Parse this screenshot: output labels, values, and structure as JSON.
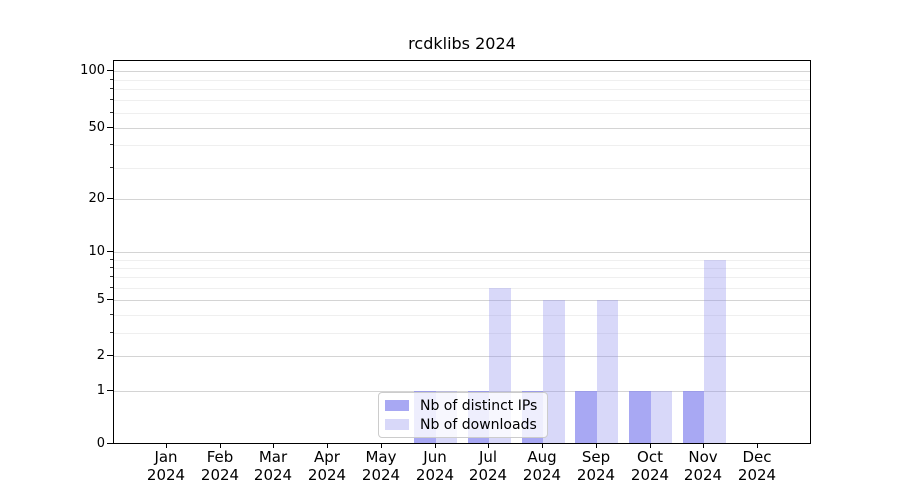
{
  "chart_data": {
    "type": "bar",
    "title": "rcdklibs 2024",
    "categories": [
      "Jan",
      "Feb",
      "Mar",
      "Apr",
      "May",
      "Jun",
      "Jul",
      "Aug",
      "Sep",
      "Oct",
      "Nov",
      "Dec"
    ],
    "xtick_year": "2024",
    "series": [
      {
        "name": "Nb of distinct IPs",
        "color": "rgba(136,136,238,0.73)",
        "values": [
          0,
          0,
          0,
          0,
          0,
          1,
          1,
          1,
          1,
          1,
          1,
          0
        ]
      },
      {
        "name": "Nb of downloads",
        "color": "rgba(136,136,238,0.33)",
        "values": [
          0,
          0,
          0,
          0,
          0,
          1,
          6,
          5,
          5,
          1,
          9,
          0
        ]
      }
    ],
    "yscale": "log1p",
    "ylim": [
      0,
      130
    ],
    "yticks": [
      0,
      1,
      2,
      5,
      10,
      20,
      50,
      100
    ],
    "minor_gridlines": [
      3,
      4,
      6,
      7,
      8,
      9,
      30,
      40,
      60,
      70,
      80,
      90
    ],
    "grid": true,
    "legend_position": "lower-center"
  }
}
